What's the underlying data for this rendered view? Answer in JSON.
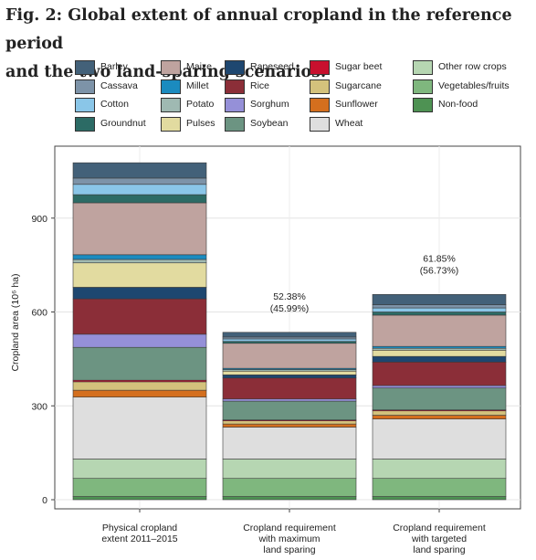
{
  "figure": {
    "title_line1": "Fig. 2: Global extent of annual cropland in the reference period",
    "title_line2": "and the two land-sparing scenarios."
  },
  "chart_data": {
    "type": "bar",
    "stacked": true,
    "ylabel": "Cropland area (10⁶ ha)",
    "ylim": [
      0,
      1130
    ],
    "yticks": [
      0,
      300,
      600,
      900
    ],
    "grid": true,
    "legend_position": "top",
    "categories": [
      [
        "Physical cropland",
        "extent 2011–2015"
      ],
      [
        "Cropland requirement",
        "with maximum",
        "land sparing"
      ],
      [
        "Cropland requirement",
        "with targeted",
        "land sparing"
      ]
    ],
    "annotations": [
      null,
      [
        "52.38%",
        "(45.99%)"
      ],
      [
        "61.85%",
        "(56.73%)"
      ]
    ],
    "legend_order": [
      "Barley",
      "Cassava",
      "Cotton",
      "Groundnut",
      "Maize",
      "Millet",
      "Potato",
      "Pulses",
      "Rapeseed",
      "Rice",
      "Sorghum",
      "Soybean",
      "Sugar beet",
      "Sugarcane",
      "Sunflower",
      "Wheat",
      "Other row crops",
      "Vegetables/fruits",
      "Non-food"
    ],
    "series": [
      {
        "name": "Non-food",
        "color": "#4e9253",
        "values": [
          10,
          10,
          10
        ]
      },
      {
        "name": "Vegetables/fruits",
        "color": "#7fb77e",
        "values": [
          58,
          58,
          58
        ]
      },
      {
        "name": "Other row crops",
        "color": "#b6d6b2",
        "values": [
          62,
          62,
          62
        ]
      },
      {
        "name": "Wheat",
        "color": "#dedede",
        "values": [
          198,
          102,
          128
        ]
      },
      {
        "name": "Sunflower",
        "color": "#d46f1e",
        "values": [
          22,
          10,
          12
        ]
      },
      {
        "name": "Sugarcane",
        "color": "#d4c27c",
        "values": [
          27,
          10,
          14
        ]
      },
      {
        "name": "Sugar beet",
        "color": "#c8102e",
        "values": [
          5,
          3,
          3
        ]
      },
      {
        "name": "Soybean",
        "color": "#6c9482",
        "values": [
          105,
          60,
          70
        ]
      },
      {
        "name": "Sorghum",
        "color": "#9590d8",
        "values": [
          42,
          7,
          8
        ]
      },
      {
        "name": "Rice",
        "color": "#8b2e38",
        "values": [
          113,
          67,
          75
        ]
      },
      {
        "name": "Rapeseed",
        "color": "#1e4770",
        "values": [
          37,
          10,
          18
        ]
      },
      {
        "name": "Pulses",
        "color": "#e2dba0",
        "values": [
          78,
          12,
          20
        ]
      },
      {
        "name": "Potato",
        "color": "#9fb9b2",
        "values": [
          11,
          5,
          6
        ]
      },
      {
        "name": "Millet",
        "color": "#1b8bbf",
        "values": [
          15,
          4,
          6
        ]
      },
      {
        "name": "Maize",
        "color": "#bfa39f",
        "values": [
          166,
          80,
          100
        ]
      },
      {
        "name": "Groundnut",
        "color": "#2c6b65",
        "values": [
          26,
          6,
          10
        ]
      },
      {
        "name": "Cotton",
        "color": "#8ac6e8",
        "values": [
          33,
          8,
          13
        ]
      },
      {
        "name": "Cassava",
        "color": "#7d93a8",
        "values": [
          20,
          6,
          10
        ]
      },
      {
        "name": "Barley",
        "color": "#436179",
        "values": [
          49,
          15,
          33
        ]
      }
    ]
  }
}
